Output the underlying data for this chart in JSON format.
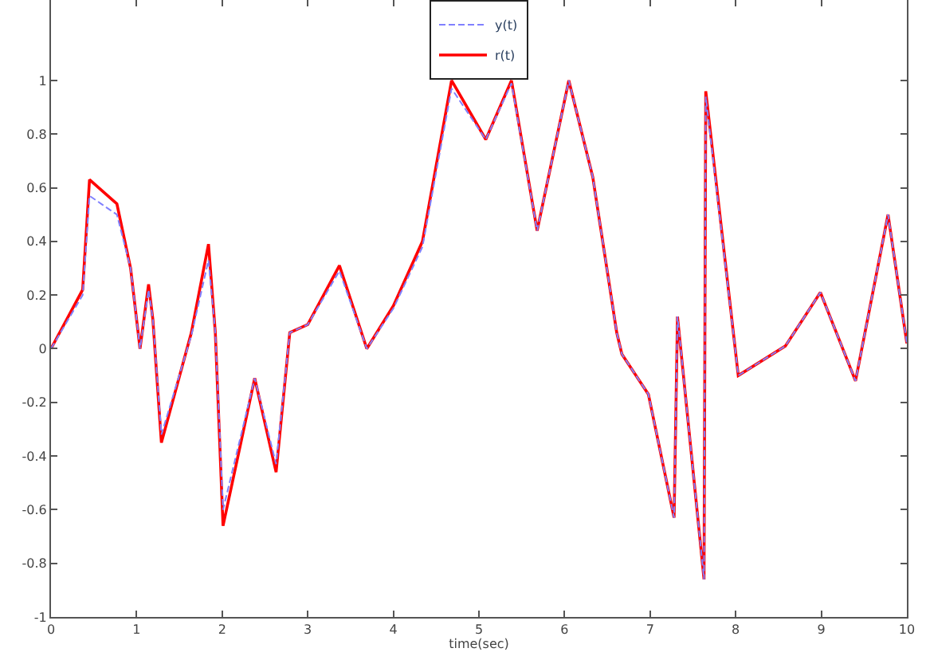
{
  "chart_data": {
    "type": "line",
    "xlabel": "time(sec)",
    "x": [
      0,
      0.37,
      0.45,
      0.77,
      0.93,
      1.04,
      1.14,
      1.19,
      1.29,
      1.64,
      1.84,
      1.92,
      2.01,
      2.38,
      2.63,
      2.79,
      3.0,
      3.37,
      3.69,
      4.0,
      4.34,
      4.68,
      5.08,
      5.38,
      5.68,
      6.05,
      6.33,
      6.61,
      6.67,
      6.98,
      7.28,
      7.32,
      7.63,
      7.65,
      8.03,
      8.58,
      8.99,
      9.4,
      9.78,
      10
    ],
    "series": [
      {
        "name": "y(t)",
        "color": "#8080ff",
        "line_style": "dashed",
        "values": [
          0,
          0.2,
          0.57,
          0.5,
          0.3,
          0.0,
          0.22,
          0.11,
          -0.32,
          0.05,
          0.33,
          0.06,
          -0.6,
          -0.11,
          -0.43,
          0.06,
          0.09,
          0.29,
          0.0,
          0.15,
          0.38,
          0.97,
          0.78,
          0.99,
          0.44,
          1.0,
          0.64,
          0.06,
          -0.02,
          -0.17,
          -0.63,
          0.12,
          -0.86,
          0.94,
          -0.1,
          0.01,
          0.21,
          -0.12,
          0.5,
          0.02
        ]
      },
      {
        "name": "r(t)",
        "color": "#ff0000",
        "line_style": "solid",
        "values": [
          0,
          0.22,
          0.63,
          0.54,
          0.3,
          0.0,
          0.24,
          0.11,
          -0.35,
          0.06,
          0.39,
          0.06,
          -0.66,
          -0.11,
          -0.46,
          0.06,
          0.09,
          0.31,
          0.0,
          0.16,
          0.4,
          1.0,
          0.78,
          1.0,
          0.44,
          1.0,
          0.64,
          0.06,
          -0.02,
          -0.17,
          -0.63,
          0.12,
          -0.86,
          0.96,
          -0.1,
          0.01,
          0.21,
          -0.12,
          0.5,
          0.02
        ]
      }
    ],
    "xlim": [
      0,
      10
    ],
    "xticks": [
      0,
      1,
      2,
      3,
      4,
      5,
      6,
      7,
      8,
      9,
      10
    ],
    "ylim": [
      -1,
      1.3
    ],
    "yticks": [
      -1,
      -0.8,
      -0.6,
      -0.4,
      -0.2,
      0,
      0.2,
      0.4,
      0.6,
      0.8,
      1
    ],
    "grid": false,
    "legend": "top"
  }
}
